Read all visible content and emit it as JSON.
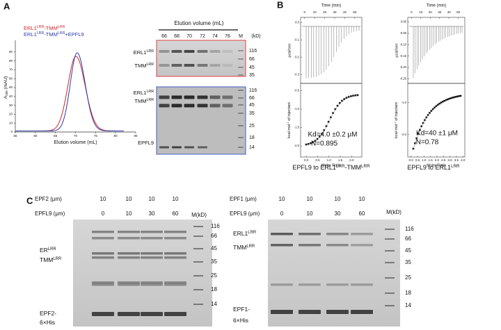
{
  "panels": {
    "A": {
      "label": "A",
      "chromatogram": {
        "legend": [
          [
            "ERL1",
            "LRR",
            "-TMM",
            "LRR"
          ],
          [
            "ERL1",
            "LRR",
            "-TMM",
            "LRR",
            "+EPFL9"
          ]
        ],
        "legend_colors": [
          "#d2232a",
          "#2b3aa8"
        ],
        "y_label": [
          "A",
          "280",
          " (mAU)"
        ],
        "x_label": "Elution volume (mL)",
        "xlim": [
          55,
          85
        ],
        "xticks": [
          55,
          60,
          65,
          70,
          75,
          80,
          85
        ],
        "ylim": [
          0,
          100
        ],
        "yticks": [
          0,
          10,
          20,
          30,
          40,
          50,
          60,
          70,
          80,
          90
        ]
      },
      "gel": {
        "header": "Elution volume (mL)",
        "lanes": [
          66,
          68,
          70,
          72,
          74,
          76,
          "M"
        ],
        "unit": "(kD)",
        "top_labels": [
          [
            "ERL1",
            "LRR"
          ],
          [
            "TMM",
            "LRR"
          ]
        ],
        "top_markers": [
          116,
          66,
          45,
          35
        ],
        "bottom_labels": [
          [
            "ERL1",
            "LRR"
          ],
          [
            "TMM",
            "LRR"
          ],
          [
            "EPFL9"
          ]
        ],
        "bottom_markers": [
          116,
          66,
          45,
          35,
          25,
          18,
          14
        ]
      }
    },
    "B": {
      "label": "B",
      "plots": [
        {
          "time_label": "Time (min)",
          "time_ticks": [
            0,
            10,
            20,
            30,
            40,
            50
          ],
          "time_lim": [
            -4,
            57
          ],
          "rate_label": "µcal/sec",
          "rate_ticks": [
            {
              "value": 0,
              "label": "0.0"
            },
            -0.1,
            -0.2,
            -0.3
          ],
          "rate_lim": [
            -0.35,
            0.03
          ],
          "heat_label": [
            "kcal mol",
            "-1",
            " of injectant"
          ],
          "heat_ticks": [
            -0.5,
            {
              "value": -1,
              "label": "-1.0"
            },
            -1.5,
            {
              "value": -2,
              "label": "-2.0"
            }
          ],
          "heat_lim": [
            -2.3,
            -0.3
          ],
          "ratio_label": "Molar Ratio",
          "ratio_ticks": [
            {
              "value": 0,
              "label": "0.0"
            },
            0.5,
            {
              "value": 1,
              "label": "1.0"
            },
            1.5,
            {
              "value": 2,
              "label": "2.0"
            }
          ],
          "ratio_lim": [
            -0.25,
            2.45
          ],
          "kd": "Kd=4.0 ±0.2 μM",
          "n": "N=0.895",
          "caption": [
            "EPFL9 to ERL1",
            "LRR",
            "-TMM",
            "LRR"
          ]
        },
        {
          "time_label": "Time (min)",
          "time_ticks": [
            0,
            10,
            20,
            30,
            40,
            50
          ],
          "time_lim": [
            -4,
            57
          ],
          "rate_label": "µcal/sec",
          "rate_ticks": [
            {
              "value": 0,
              "label": "0.00"
            },
            -0.05,
            {
              "value": -0.1,
              "label": "-0.10"
            },
            -0.15,
            {
              "value": -0.2,
              "label": "-0.20"
            },
            -0.25
          ],
          "rate_lim": [
            -0.27,
            0.02
          ],
          "heat_label": [
            "kcal mol",
            "-1",
            " of injectant"
          ],
          "heat_ticks": [
            {
              "value": -1,
              "label": "-1.0"
            },
            {
              "value": -2,
              "label": "-2.0"
            }
          ],
          "heat_lim": [
            -2.7,
            -0.4
          ],
          "ratio_label": "Molar Ratio",
          "ratio_ticks": [
            {
              "value": 0,
              "label": "0.0"
            },
            0.5,
            {
              "value": 1,
              "label": "1.0"
            },
            1.5,
            {
              "value": 2,
              "label": "2.0"
            },
            2.5,
            {
              "value": 3,
              "label": "3.0"
            },
            3.5,
            {
              "value": 4,
              "label": "4.0"
            }
          ],
          "ratio_lim": [
            -0.25,
            4.15
          ],
          "kd": "Kd=40 ±1 μM",
          "n": "N=0.78",
          "caption": [
            "EPFL9 to ERL1",
            "LRR"
          ]
        }
      ]
    },
    "C": {
      "label": "C",
      "gels": [
        {
          "rows": [
            {
              "label": "EPF2 (μm)",
              "values": [
                10,
                10,
                10,
                10
              ]
            },
            {
              "label": "EPFL9 (μm)",
              "values": [
                0,
                10,
                30,
                60
              ]
            }
          ],
          "marker_header": "M(kD)",
          "markers": [
            116,
            66,
            45,
            35,
            25,
            18,
            14
          ],
          "labels": [
            [
              "ER",
              "LRR"
            ],
            [
              "TMM",
              "LRR"
            ],
            [
              "EPF2-"
            ],
            [
              "6×His"
            ]
          ]
        },
        {
          "rows": [
            {
              "label": "EPF1 (μm)",
              "values": [
                10,
                10,
                10,
                10
              ]
            },
            {
              "label": "EPFL9 (μm)",
              "values": [
                0,
                10,
                30,
                60
              ]
            }
          ],
          "marker_header": "M(kD)",
          "markers": [
            116,
            66,
            45,
            35,
            25,
            18,
            14
          ],
          "labels": [
            [
              "ERL1",
              "LRR"
            ],
            [
              "TMM",
              "LRR"
            ],
            [
              "EPF1-"
            ],
            [
              "6×His"
            ]
          ]
        }
      ]
    }
  }
}
